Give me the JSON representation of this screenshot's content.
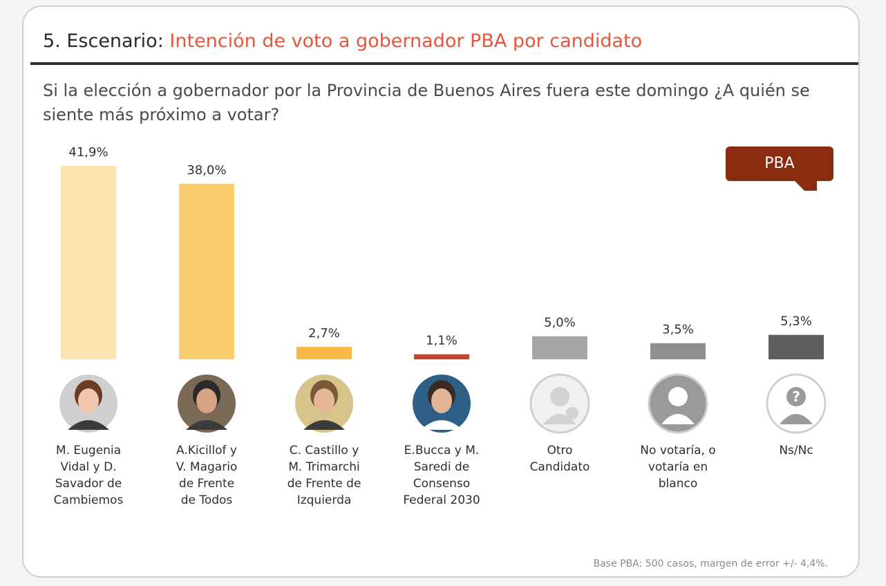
{
  "header": {
    "number": "5. Escenario:",
    "title": "Intención de voto a gobernador PBA por candidato"
  },
  "question": "Si la elección a gobernador por la Provincia de Buenos Aires fuera este domingo ¿A quién se siente más próximo a votar?",
  "badge": "PBA",
  "footer": "Base PBA: 500 casos, margen de error +/- 4,4%.",
  "chart_data": {
    "type": "bar",
    "unit": "%",
    "ylim": [
      0,
      45
    ],
    "grid": false,
    "categories": [
      "M. Eugenia Vidal y D. Savador de Cambiemos",
      "A.Kicillof y V. Magario de Frente de Todos",
      "C. Castillo y M. Trimarchi de Frente de Izquierda",
      "E.Bucca y M. Saredi de Consenso Federal 2030",
      "Otro Candidato",
      "No votaría, o votaría en blanco",
      "Ns/Nc"
    ],
    "values": [
      41.9,
      38.0,
      2.7,
      1.1,
      5.0,
      3.5,
      5.3
    ],
    "value_labels": [
      "41,9%",
      "38,0%",
      "2,7%",
      "1,1%",
      "5,0%",
      "3,5%",
      "5,3%"
    ],
    "colors": [
      "#fde3b0",
      "#f9cc6e",
      "#f7b948",
      "#c7462a",
      "#a7a7a7",
      "#8f8f8f",
      "#5f5f5f"
    ]
  },
  "candidates": [
    {
      "label_lines": [
        "M. Eugenia",
        "Vidal y  D.",
        "Savador de",
        "Cambiemos"
      ],
      "icon": "candidate-photo"
    },
    {
      "label_lines": [
        "A.Kicillof y",
        "V. Magario",
        "de Frente",
        "de Todos"
      ],
      "icon": "candidate-photo"
    },
    {
      "label_lines": [
        "C. Castillo y",
        "M. Trimarchi",
        "de Frente de",
        "Izquierda"
      ],
      "icon": "candidate-photo"
    },
    {
      "label_lines": [
        "E.Bucca y M.",
        "Saredi de",
        "Consenso",
        "Federal 2030"
      ],
      "icon": "candidate-photo"
    },
    {
      "label_lines": [
        "Otro",
        "Candidato"
      ],
      "icon": "add-person-icon"
    },
    {
      "label_lines": [
        "No votaría, o",
        "votaría en",
        "blanco"
      ],
      "icon": "person-silhouette-icon"
    },
    {
      "label_lines": [
        "Ns/Nc"
      ],
      "icon": "unknown-person-icon"
    }
  ]
}
